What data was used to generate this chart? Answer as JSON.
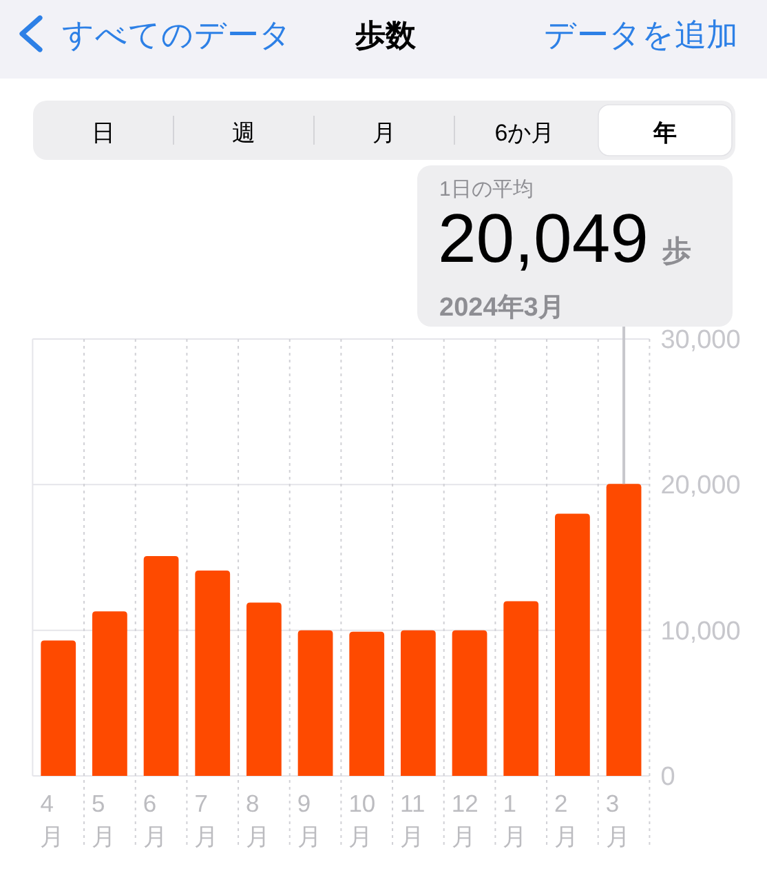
{
  "chart_data": {
    "type": "bar",
    "title": "歩数",
    "categories": [
      "4月",
      "5月",
      "6月",
      "7月",
      "8月",
      "9月",
      "10月",
      "11月",
      "12月",
      "1月",
      "2月",
      "3月"
    ],
    "values": [
      9300,
      11300,
      15100,
      14100,
      11900,
      10000,
      9900,
      10000,
      10000,
      12000,
      18000,
      20049
    ],
    "color": "#fe4a00",
    "ylim": [
      0,
      30000
    ],
    "yticks": [
      0,
      {
        "value": 10000,
        "label": "10,000"
      },
      {
        "value": 20000,
        "label": "20,000"
      },
      {
        "value": 30000,
        "label": "30,000"
      }
    ],
    "grid": true,
    "annotations": [
      "すべてのデータ",
      "データを追加",
      "1日の平均",
      {
        "text": "20,049",
        "x": "3月",
        "y": 20049
      },
      "歩",
      "2024年3月",
      "日",
      "週",
      "月",
      "6か月",
      "年"
    ]
  }
}
